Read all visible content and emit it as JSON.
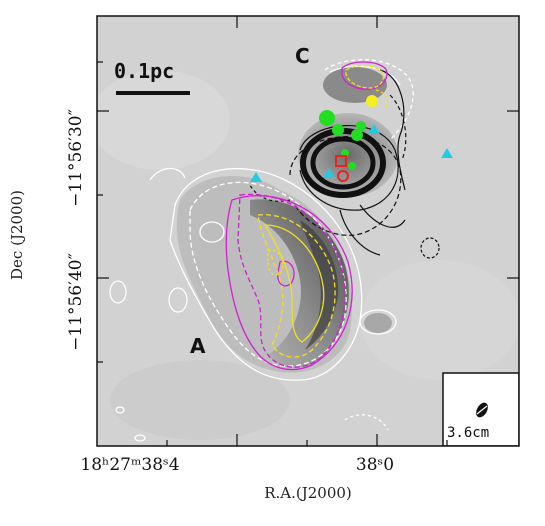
{
  "figure": {
    "x_axis_title": "R.A.(J2000)",
    "y_axis_title": "Dec (J2000)",
    "x_ticks": [
      {
        "label": "18ʰ27ᵐ38ˢ4"
      },
      {
        "label": "38ˢ0"
      }
    ],
    "y_ticks": [
      {
        "label": "−11°56′30″"
      },
      {
        "label": "−11°56′40″"
      }
    ],
    "scale_bar_label": "0.1pc",
    "region_labels": [
      "A",
      "C"
    ],
    "beam_label": "3.6cm"
  },
  "colors": {
    "background_map": "#cfcfcf",
    "contour_white": "#ffffff",
    "contour_black": "#111111",
    "contour_magenta": "#d020d0",
    "contour_yellow": "#f0e020",
    "marker_green": "#22dd22",
    "marker_yellow": "#f5f020",
    "marker_cyan": "#22cce0",
    "marker_red": "#ee2020"
  },
  "markers": {
    "green_circles": 6,
    "yellow_circles": 1,
    "cyan_triangles": 4,
    "red_square": 1,
    "red_circle": 1
  }
}
